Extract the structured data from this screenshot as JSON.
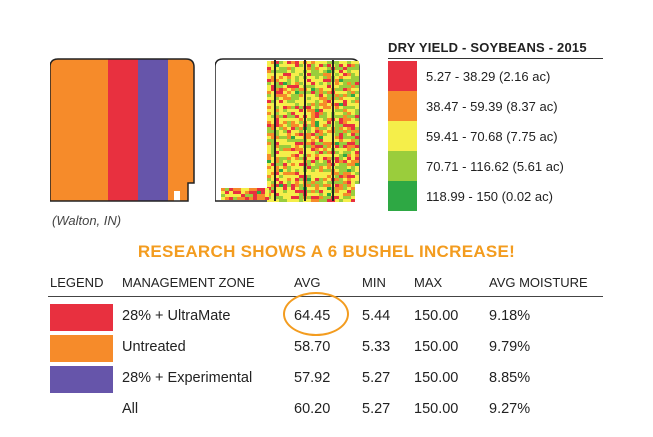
{
  "legend": {
    "title": "DRY YIELD - SOYBEANS - 2015",
    "items": [
      {
        "label": "5.27 - 38.29 (2.16 ac)",
        "color": "#e8303f"
      },
      {
        "label": "38.47 - 59.39 (8.37 ac)",
        "color": "#f68b2a"
      },
      {
        "label": "59.41 - 70.68 (7.75 ac)",
        "color": "#f5ee4a"
      },
      {
        "label": "70.71 - 116.62 (5.61 ac)",
        "color": "#9acd3c"
      },
      {
        "label": "118.99 - 150 (0.02 ac)",
        "color": "#2ea844"
      }
    ]
  },
  "location": "(Walton, IN)",
  "headline": "RESEARCH SHOWS A 6 BUSHEL INCREASE!",
  "chart_data": {
    "type": "table",
    "columns": [
      "LEGEND",
      "MANAGEMENT ZONE",
      "AVG",
      "MIN",
      "MAX",
      "AVG MOISTURE"
    ],
    "rows": [
      {
        "color": "#e8303f",
        "zone": "28% + UltraMate",
        "avg": "64.45",
        "min": "5.44",
        "max": "150.00",
        "moisture": "9.18%"
      },
      {
        "color": "#f68b2a",
        "zone": "Untreated",
        "avg": "58.70",
        "min": "5.33",
        "max": "150.00",
        "moisture": "9.79%"
      },
      {
        "color": "#6655aa",
        "zone": "28% + Experimental",
        "avg": "57.92",
        "min": "5.27",
        "max": "150.00",
        "moisture": "8.85%"
      },
      {
        "color": "",
        "zone": "All",
        "avg": "60.20",
        "min": "5.27",
        "max": "150.00",
        "moisture": "9.27%"
      }
    ]
  },
  "colors": {
    "accent": "#f39c1f",
    "zone_orange": "#f68b2a",
    "zone_red": "#e8303f",
    "zone_purple": "#6655aa"
  }
}
